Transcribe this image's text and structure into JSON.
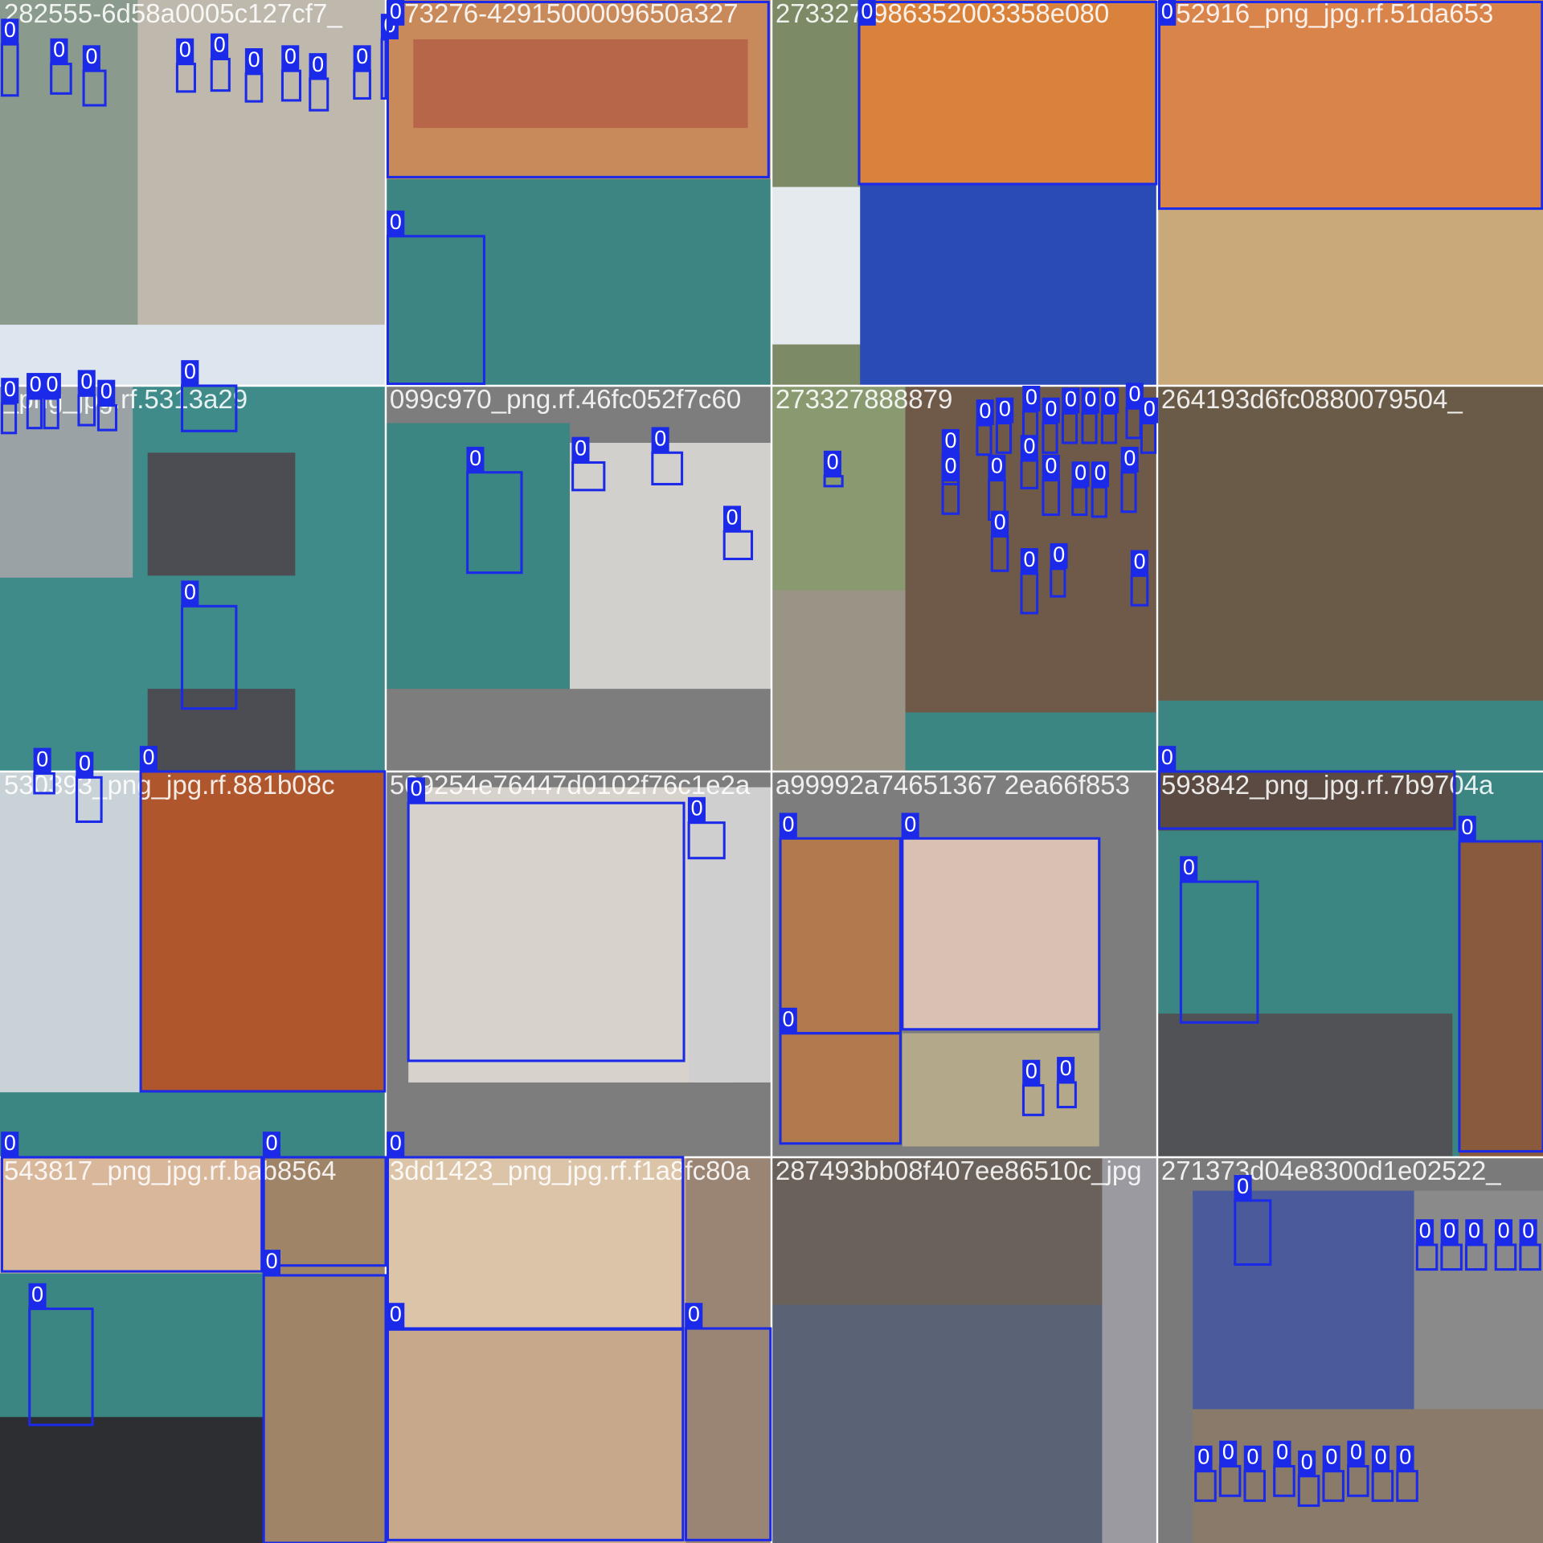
{
  "tiles": [
    {
      "title": "282555-6d58a0005c127cf7_",
      "boxes": [
        "0",
        "0",
        "0",
        "0",
        "0",
        "0",
        "0",
        "0",
        "0",
        "0"
      ]
    },
    {
      "title": "273276-4291500009650a327",
      "boxes": [
        "0",
        "0"
      ]
    },
    {
      "title": "273327-986352003358e080",
      "boxes": [
        "0"
      ]
    },
    {
      "title": "252916_png_jpg.rf.51da653",
      "boxes": [
        "0"
      ]
    },
    {
      "title": "_png_jpg.rf.5313a29",
      "boxes": [
        "0",
        "0",
        "0",
        "0",
        "0",
        "0",
        "0"
      ]
    },
    {
      "title": "099c970_png.rf.46fc052f7c60",
      "boxes": [
        "0",
        "0",
        "0",
        "0"
      ]
    },
    {
      "title": "273327888879",
      "boxes": [
        "0",
        "0",
        "0",
        "0",
        "0",
        "0",
        "0",
        "0",
        "0",
        "0",
        "0",
        "0",
        "0",
        "0",
        "0",
        "0",
        "0",
        "0",
        "0",
        "0",
        "0",
        "0"
      ]
    },
    {
      "title": "264193d6fc0880079504_",
      "boxes": []
    },
    {
      "title": "530393_png_jpg.rf.881b08c",
      "boxes": [
        "0",
        "0",
        "0"
      ]
    },
    {
      "title": "509254e76447d0102f76c1e2a",
      "boxes": [
        "0",
        "0"
      ]
    },
    {
      "title": "a99992a74651367 2ea66f853",
      "boxes": [
        "0",
        "0",
        "0",
        "0",
        "0"
      ]
    },
    {
      "title": "593842_png_jpg.rf.7b9704a",
      "boxes": [
        "0",
        "0",
        "0"
      ]
    },
    {
      "title": "543817_png_jpg.rf.bab8564",
      "boxes": [
        "0",
        "0",
        "0",
        "0"
      ]
    },
    {
      "title": "3dd1423_png_jpg.rf.f1a8fc80a",
      "boxes": [
        "0",
        "0",
        "0"
      ]
    },
    {
      "title": "287493bb08f407ee86510c_jpg",
      "boxes": []
    },
    {
      "title": "271373d04e8300d1e02522_",
      "boxes": [
        "0",
        "0",
        "0",
        "0",
        "0",
        "0",
        "0",
        "0",
        "0",
        "0",
        "0",
        "0",
        "0",
        "0",
        "0"
      ]
    }
  ]
}
